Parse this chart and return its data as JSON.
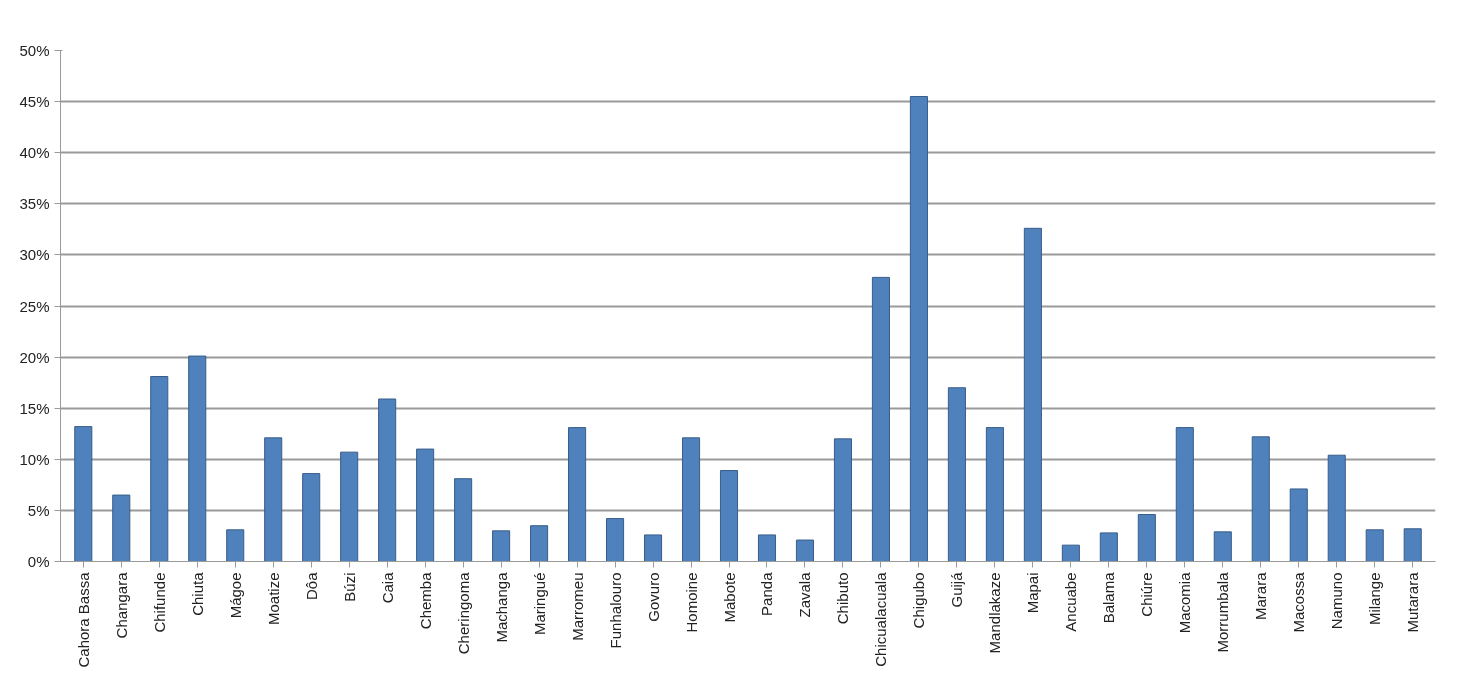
{
  "chart_data": {
    "type": "bar",
    "categories": [
      "Cahora Bassa",
      "Changara",
      "Chifunde",
      "Chiuta",
      "Mágoe",
      "Moatize",
      "Dôa",
      "Búzi",
      "Caia",
      "Chemba",
      "Cheringoma",
      "Machanga",
      "Maringué",
      "Marromeu",
      "Funhalouro",
      "Govuro",
      "Homoine",
      "Mabote",
      "Panda",
      "Zavala",
      "Chibuto",
      "Chicualacuala",
      "Chigubo",
      "Guijá",
      "Mandlakaze",
      "Mapai",
      "Ancuabe",
      "Balama",
      "Chiúre",
      "Macomia",
      "Morrumbala",
      "Marara",
      "Macossa",
      "Namuno",
      "Milange",
      "Mutarara"
    ],
    "values": [
      13.2,
      6.5,
      18.1,
      20.1,
      3.1,
      12.1,
      8.6,
      10.7,
      15.9,
      11.0,
      8.1,
      3.0,
      3.5,
      13.1,
      4.2,
      2.6,
      12.1,
      8.9,
      2.6,
      2.1,
      12.0,
      27.8,
      45.5,
      17.0,
      13.1,
      32.6,
      1.6,
      2.8,
      4.6,
      13.1,
      2.9,
      12.2,
      7.1,
      10.4,
      3.1,
      3.2
    ],
    "color": "#4f81bd",
    "ylim": [
      0,
      50
    ],
    "yticks": [
      {
        "value": 0,
        "label": "0%"
      },
      {
        "value": 5,
        "label": "5%"
      },
      {
        "value": 10,
        "label": "10%"
      },
      {
        "value": 15,
        "label": "15%"
      },
      {
        "value": 20,
        "label": "20%"
      },
      {
        "value": 25,
        "label": "25%"
      },
      {
        "value": 30,
        "label": "30%"
      },
      {
        "value": 35,
        "label": "35%"
      },
      {
        "value": 40,
        "label": "40%"
      },
      {
        "value": 45,
        "label": "45%"
      },
      {
        "value": 50,
        "label": "50%"
      }
    ],
    "grid": "y"
  }
}
